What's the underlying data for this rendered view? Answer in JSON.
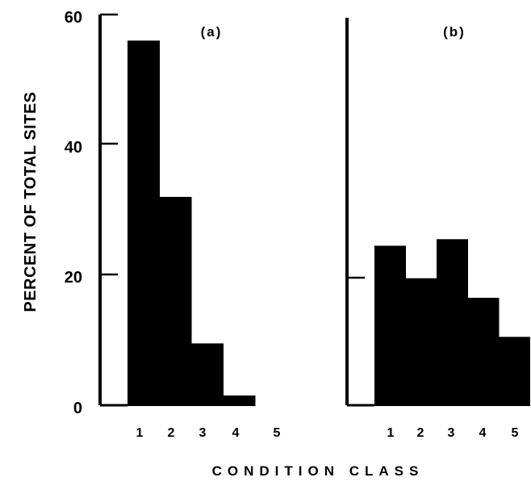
{
  "chart_data": [
    {
      "type": "bar",
      "panel_label": "(a)",
      "categories": [
        "1",
        "2",
        "3",
        "4",
        "5"
      ],
      "values": [
        56,
        32,
        9.5,
        1.5,
        0
      ],
      "ylabel": "PERCENT OF TOTAL SITES",
      "xlabel": "CONDITION CLASS",
      "ylim": [
        0,
        60
      ],
      "yticks": [
        "0",
        "20",
        "40",
        "60"
      ],
      "grid": false,
      "legend": "none",
      "bar_color": "#000000"
    },
    {
      "type": "bar",
      "panel_label": "(b)",
      "categories": [
        "1",
        "2",
        "3",
        "4",
        "5"
      ],
      "values": [
        24.5,
        19.5,
        25.5,
        16.5,
        10.5
      ],
      "ylabel": "",
      "xlabel": "CONDITION CLASS",
      "ylim": [
        0,
        60
      ],
      "grid": false,
      "legend": "none",
      "bar_color": "#000000"
    }
  ],
  "shared": {
    "ylabel": "PERCENT OF TOTAL SITES",
    "xlabel": "CONDITION CLASS",
    "yticks": [
      "0",
      "20",
      "40",
      "60"
    ]
  }
}
